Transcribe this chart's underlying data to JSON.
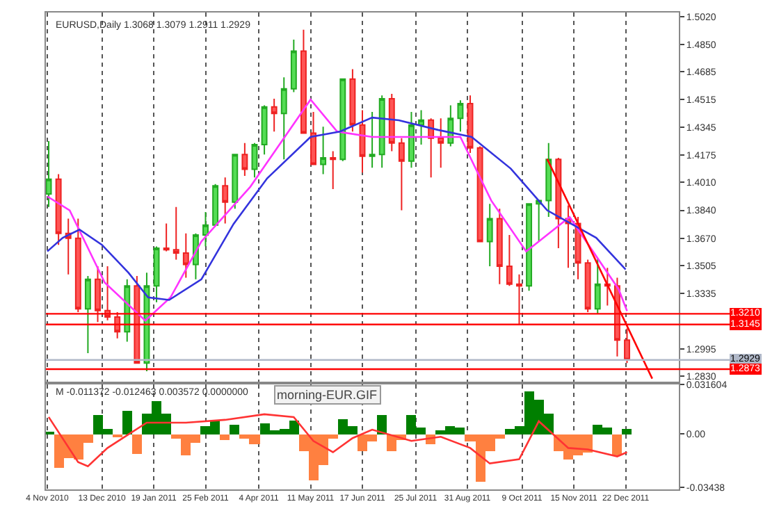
{
  "chart_data": [
    {
      "type": "candlestick",
      "annotations": [
        "EURUSD,Daily 1.3068 1.3079 1.2911 1.2929"
      ],
      "x": [
        "2010-11-05",
        "2010-11-12",
        "2010-11-19",
        "2010-11-26",
        "2010-12-03",
        "2010-12-10",
        "2010-12-17",
        "2010-12-24",
        "2010-12-31",
        "2011-01-07",
        "2011-01-14",
        "2011-01-21",
        "2011-01-28",
        "2011-02-04",
        "2011-02-11",
        "2011-02-18",
        "2011-02-25",
        "2011-03-04",
        "2011-03-11",
        "2011-03-18",
        "2011-03-25",
        "2011-04-01",
        "2011-04-08",
        "2011-04-15",
        "2011-04-22",
        "2011-04-29",
        "2011-05-06",
        "2011-05-13",
        "2011-05-20",
        "2011-05-27",
        "2011-06-03",
        "2011-06-10",
        "2011-06-17",
        "2011-06-24",
        "2011-07-01",
        "2011-07-08",
        "2011-07-15",
        "2011-07-22",
        "2011-07-29",
        "2011-08-05",
        "2011-08-12",
        "2011-08-19",
        "2011-08-26",
        "2011-09-02",
        "2011-09-09",
        "2011-09-16",
        "2011-09-23",
        "2011-09-30",
        "2011-10-07",
        "2011-10-14",
        "2011-10-21",
        "2011-10-28",
        "2011-11-04",
        "2011-11-11",
        "2011-11-18",
        "2011-11-25",
        "2011-12-02",
        "2011-12-09",
        "2011-12-16",
        "2011-12-23"
      ],
      "ohlc": [
        [
          1.394,
          1.4262,
          1.386,
          1.403
        ],
        [
          1.403,
          1.406,
          1.363,
          1.37
        ],
        [
          1.37,
          1.379,
          1.345,
          1.367
        ],
        [
          1.367,
          1.379,
          1.322,
          1.324
        ],
        [
          1.324,
          1.344,
          1.297,
          1.342
        ],
        [
          1.342,
          1.35,
          1.316,
          1.323
        ],
        [
          1.323,
          1.35,
          1.317,
          1.319
        ],
        [
          1.319,
          1.322,
          1.306,
          1.31
        ],
        [
          1.31,
          1.342,
          1.304,
          1.338
        ],
        [
          1.338,
          1.344,
          1.291,
          1.291
        ],
        [
          1.291,
          1.346,
          1.286,
          1.338
        ],
        [
          1.338,
          1.362,
          1.328,
          1.361
        ],
        [
          1.361,
          1.376,
          1.359,
          1.36
        ],
        [
          1.36,
          1.386,
          1.354,
          1.358
        ],
        [
          1.358,
          1.37,
          1.343,
          1.351
        ],
        [
          1.351,
          1.37,
          1.342,
          1.369
        ],
        [
          1.369,
          1.383,
          1.362,
          1.375
        ],
        [
          1.375,
          1.4,
          1.375,
          1.399
        ],
        [
          1.399,
          1.404,
          1.376,
          1.389
        ],
        [
          1.389,
          1.418,
          1.385,
          1.418
        ],
        [
          1.418,
          1.425,
          1.405,
          1.409
        ],
        [
          1.409,
          1.425,
          1.404,
          1.424
        ],
        [
          1.424,
          1.448,
          1.418,
          1.447
        ],
        [
          1.447,
          1.452,
          1.432,
          1.443
        ],
        [
          1.443,
          1.465,
          1.415,
          1.458
        ],
        [
          1.458,
          1.488,
          1.456,
          1.481
        ],
        [
          1.481,
          1.494,
          1.431,
          1.431
        ],
        [
          1.431,
          1.444,
          1.412,
          1.412
        ],
        [
          1.412,
          1.435,
          1.406,
          1.416
        ],
        [
          1.416,
          1.42,
          1.397,
          1.415
        ],
        [
          1.415,
          1.464,
          1.414,
          1.464
        ],
        [
          1.464,
          1.47,
          1.432,
          1.436
        ],
        [
          1.436,
          1.445,
          1.407,
          1.417
        ],
        [
          1.417,
          1.444,
          1.41,
          1.418
        ],
        [
          1.418,
          1.454,
          1.41,
          1.452
        ],
        [
          1.452,
          1.455,
          1.42,
          1.425
        ],
        [
          1.425,
          1.428,
          1.384,
          1.414
        ],
        [
          1.414,
          1.444,
          1.41,
          1.436
        ],
        [
          1.436,
          1.445,
          1.424,
          1.439
        ],
        [
          1.439,
          1.44,
          1.404,
          1.428
        ],
        [
          1.428,
          1.44,
          1.41,
          1.425
        ],
        [
          1.425,
          1.448,
          1.423,
          1.44
        ],
        [
          1.44,
          1.451,
          1.432,
          1.449
        ],
        [
          1.449,
          1.454,
          1.419,
          1.422
        ],
        [
          1.422,
          1.423,
          1.365,
          1.365
        ],
        [
          1.365,
          1.388,
          1.35,
          1.379
        ],
        [
          1.379,
          1.385,
          1.339,
          1.35
        ],
        [
          1.35,
          1.369,
          1.338,
          1.339
        ],
        [
          1.339,
          1.345,
          1.3145,
          1.338
        ],
        [
          1.338,
          1.388,
          1.335,
          1.388
        ],
        [
          1.388,
          1.39,
          1.365,
          1.39
        ],
        [
          1.39,
          1.425,
          1.38,
          1.415
        ],
        [
          1.415,
          1.416,
          1.361,
          1.379
        ],
        [
          1.379,
          1.387,
          1.349,
          1.376
        ],
        [
          1.376,
          1.38,
          1.342,
          1.352
        ],
        [
          1.352,
          1.354,
          1.322,
          1.324
        ],
        [
          1.324,
          1.355,
          1.321,
          1.339
        ],
        [
          1.339,
          1.349,
          1.326,
          1.338
        ],
        [
          1.338,
          1.343,
          1.295,
          1.305
        ],
        [
          1.305,
          1.312,
          1.291,
          1.2929
        ]
      ],
      "series": [
        {
          "type": "line",
          "color": "#ff33ff",
          "x": [
            "2010-11-04",
            "2010-11-20",
            "2010-12-15",
            "2011-01-13",
            "2011-01-31",
            "2011-02-22",
            "2011-03-29",
            "2011-05-11",
            "2011-05-30",
            "2011-06-24",
            "2011-08-26",
            "2011-09-17",
            "2011-10-12",
            "2011-11-12",
            "2011-12-17",
            "2011-12-23"
          ],
          "values": [
            1.3925,
            1.384,
            1.34,
            1.3168,
            1.331,
            1.365,
            1.3984,
            1.4515,
            1.432,
            1.4287,
            1.4287,
            1.39,
            1.359,
            1.3799,
            1.336,
            1.3227
          ]
        },
        {
          "type": "line",
          "color": "#3333dd",
          "x": [
            "2010-11-04",
            "2010-11-15",
            "2010-11-27",
            "2010-12-13",
            "2011-01-01",
            "2011-01-15",
            "2011-01-30",
            "2011-02-22",
            "2011-03-17",
            "2011-04-10",
            "2011-05-11",
            "2011-06-01",
            "2011-06-24",
            "2011-07-13",
            "2011-08-10",
            "2011-09-03",
            "2011-10-01",
            "2011-10-27",
            "2011-12-01",
            "2011-12-22"
          ],
          "values": [
            1.359,
            1.3673,
            1.3723,
            1.363,
            1.346,
            1.331,
            1.3294,
            1.342,
            1.3757,
            1.4035,
            1.4287,
            1.432,
            1.4405,
            1.4389,
            1.433,
            1.4287,
            1.4094,
            1.384,
            1.3673,
            1.348
          ]
        },
        {
          "type": "line",
          "color": "#ff0000",
          "x": [
            "2011-10-27",
            "2012-01-10"
          ],
          "values": [
            1.4153,
            1.2815
          ]
        }
      ],
      "ref_lines": [
        {
          "axis": "y",
          "value": 1.321,
          "label": "1.3210",
          "color": "#ff0000"
        },
        {
          "axis": "y",
          "value": 1.3145,
          "label": "1.3145",
          "color": "#ff0000"
        },
        {
          "axis": "y",
          "value": 1.2929,
          "label": "1.2929",
          "color": "#b0b8c8"
        },
        {
          "axis": "y",
          "value": 1.2873,
          "label": "1.2873",
          "color": "#ff0000"
        }
      ],
      "xlim": [
        "2010-11-03",
        "2012-01-29"
      ],
      "xticks": [
        {
          "value": "2010-11-04",
          "label": null
        },
        {
          "value": "2010-12-13",
          "label": null
        },
        {
          "value": "2011-01-19",
          "label": null
        },
        {
          "value": "2011-02-25",
          "label": null
        },
        {
          "value": "2011-04-04",
          "label": null
        },
        {
          "value": "2011-05-11",
          "label": null
        },
        {
          "value": "2011-06-17",
          "label": null
        },
        {
          "value": "2011-07-25",
          "label": null
        },
        {
          "value": "2011-08-31",
          "label": null
        },
        {
          "value": "2011-10-09",
          "label": null
        },
        {
          "value": "2011-11-15",
          "label": null
        },
        {
          "value": "2011-12-22",
          "label": null
        }
      ],
      "ylim": [
        1.2797,
        1.5045
      ],
      "yticks": [
        {
          "value": 1.502,
          "label": "1.5020"
        },
        {
          "value": 1.485,
          "label": "1.4850"
        },
        1.4685,
        1.4515,
        1.4345,
        1.4175,
        {
          "value": 1.401,
          "label": "1.4010"
        },
        {
          "value": 1.384,
          "label": "1.3840"
        },
        {
          "value": 1.367,
          "label": "1.3670"
        },
        1.3505,
        1.3335,
        1.2995,
        {
          "value": 1.283,
          "label": "1.2830"
        }
      ],
      "grid": "x",
      "tick_labels": "y"
    },
    {
      "type": "bar",
      "annotations": [
        "M -0.011372 -0.012463 0.003572 0.0000000",
        "morning-EUR.GIF"
      ],
      "x": [
        "2010-11-05",
        "2010-11-12",
        "2010-11-19",
        "2010-11-26",
        "2010-12-03",
        "2010-12-10",
        "2010-12-17",
        "2010-12-24",
        "2010-12-31",
        "2011-01-07",
        "2011-01-14",
        "2011-01-21",
        "2011-01-28",
        "2011-02-04",
        "2011-02-11",
        "2011-02-18",
        "2011-02-25",
        "2011-03-04",
        "2011-03-11",
        "2011-03-18",
        "2011-03-25",
        "2011-04-01",
        "2011-04-08",
        "2011-04-15",
        "2011-04-22",
        "2011-04-29",
        "2011-05-06",
        "2011-05-13",
        "2011-05-20",
        "2011-05-27",
        "2011-06-03",
        "2011-06-10",
        "2011-06-17",
        "2011-06-24",
        "2011-07-01",
        "2011-07-08",
        "2011-07-15",
        "2011-07-22",
        "2011-07-29",
        "2011-08-05",
        "2011-08-12",
        "2011-08-19",
        "2011-08-26",
        "2011-09-02",
        "2011-09-09",
        "2011-09-16",
        "2011-09-23",
        "2011-09-30",
        "2011-10-07",
        "2011-10-14",
        "2011-10-21",
        "2011-10-28",
        "2011-11-04",
        "2011-11-11",
        "2011-11-18",
        "2011-11-25",
        "2011-12-02",
        "2011-12-09",
        "2011-12-16",
        "2011-12-23"
      ],
      "series": [
        {
          "type": "bar",
          "values": [
            0.001,
            -0.0216,
            -0.0153,
            -0.0162,
            -0.0054,
            0.0117,
            0.0036,
            -0.0018,
            0.0144,
            -0.0126,
            0.0126,
            0.0207,
            0.0126,
            -0.0027,
            -0.0135,
            -0.0054,
            0.0054,
            0.009,
            -0.0036,
            0.0063,
            -0.0027,
            -0.0063,
            0.0072,
            0.0027,
            0.0036,
            0.009,
            -0.0108,
            -0.0297,
            -0.0198,
            -0.0027,
            0.0099,
            0.0054,
            -0.0108,
            -0.0045,
            0.0117,
            -0.0108,
            -0.0036,
            0.0117,
            0.0045,
            -0.0063,
            0.0027,
            0.0054,
            0.0045,
            -0.0045,
            -0.0306,
            -0.0108,
            -0.0027,
            0.0036,
            0.0054,
            0.027,
            0.0216,
            0.0126,
            -0.0108,
            -0.0162,
            -0.0135,
            -0.0117,
            0.0063,
            0.0045,
            -0.0135,
            0.0036
          ],
          "colors": [
            "#007f00",
            "#ff8040",
            "#ff8040",
            "#ff8040",
            "#ff8040",
            "#007f00",
            "#007f00",
            "#ff8040",
            "#007f00",
            "#ff8040",
            "#007f00",
            "#007f00",
            "#007f00",
            "#ff8040",
            "#ff8040",
            "#ff8040",
            "#007f00",
            "#007f00",
            "#ff8040",
            "#007f00",
            "#ff8040",
            "#ff8040",
            "#007f00",
            "#007f00",
            "#007f00",
            "#007f00",
            "#ff8040",
            "#ff8040",
            "#ff8040",
            "#ff8040",
            "#007f00",
            "#007f00",
            "#ff8040",
            "#ff8040",
            "#007f00",
            "#ff8040",
            "#ff8040",
            "#007f00",
            "#007f00",
            "#ff8040",
            "#007f00",
            "#007f00",
            "#007f00",
            "#ff8040",
            "#ff8040",
            "#ff8040",
            "#ff8040",
            "#007f00",
            "#007f00",
            "#007f00",
            "#007f00",
            "#007f00",
            "#ff8040",
            "#ff8040",
            "#ff8040",
            "#ff8040",
            "#007f00",
            "#007f00",
            "#ff8040",
            "#007f00"
          ]
        },
        {
          "type": "line",
          "color": "#ff3333",
          "x": [
            "2010-11-05",
            "2010-11-26",
            "2010-12-03",
            "2010-12-17",
            "2010-12-31",
            "2011-01-14",
            "2011-02-11",
            "2011-03-11",
            "2011-04-08",
            "2011-04-29",
            "2011-05-13",
            "2011-05-27",
            "2011-06-10",
            "2011-06-24",
            "2011-07-22",
            "2011-08-12",
            "2011-09-02",
            "2011-09-16",
            "2011-10-07",
            "2011-10-21",
            "2011-11-11",
            "2011-11-25",
            "2011-12-16",
            "2011-12-23"
          ],
          "values": [
            0.0108,
            -0.018,
            -0.0207,
            -0.009,
            -0.0009,
            0.0072,
            0.0072,
            0.009,
            0.0126,
            0.0108,
            -0.0045,
            -0.0117,
            -0.0027,
            0.0027,
            -0.0045,
            -0.0018,
            -0.009,
            -0.0189,
            -0.0162,
            0.0081,
            -0.009,
            -0.0099,
            -0.0144,
            -0.0117
          ]
        }
      ],
      "xlim": [
        "2010-11-03",
        "2012-01-29"
      ],
      "xticks": [
        {
          "value": "2010-11-04",
          "label": "4 Nov 2010"
        },
        {
          "value": "2010-12-13",
          "label": "13 Dec 2010"
        },
        {
          "value": "2011-01-19",
          "label": "19 Jan 2011"
        },
        {
          "value": "2011-02-25",
          "label": "25 Feb 2011"
        },
        {
          "value": "2011-04-04",
          "label": "4 Apr 2011"
        },
        {
          "value": "2011-05-11",
          "label": "11 May 2011"
        },
        {
          "value": "2011-06-17",
          "label": "17 Jun 2011"
        },
        {
          "value": "2011-07-25",
          "label": "25 Jul 2011"
        },
        {
          "value": "2011-08-31",
          "label": "31 Aug 2011"
        },
        {
          "value": "2011-10-09",
          "label": "9 Oct 2011"
        },
        {
          "value": "2011-11-15",
          "label": "15 Nov 2011"
        },
        {
          "value": "2011-12-22",
          "label": "22 Dec 2011"
        }
      ],
      "ylim": [
        -0.0355,
        0.0317
      ],
      "yticks": [
        {
          "value": 0.031604,
          "label": "0.031604"
        },
        {
          "value": 0,
          "label": "0.00"
        },
        {
          "value": -0.03438,
          "label": "-0.03438"
        }
      ],
      "grid": "x"
    }
  ]
}
